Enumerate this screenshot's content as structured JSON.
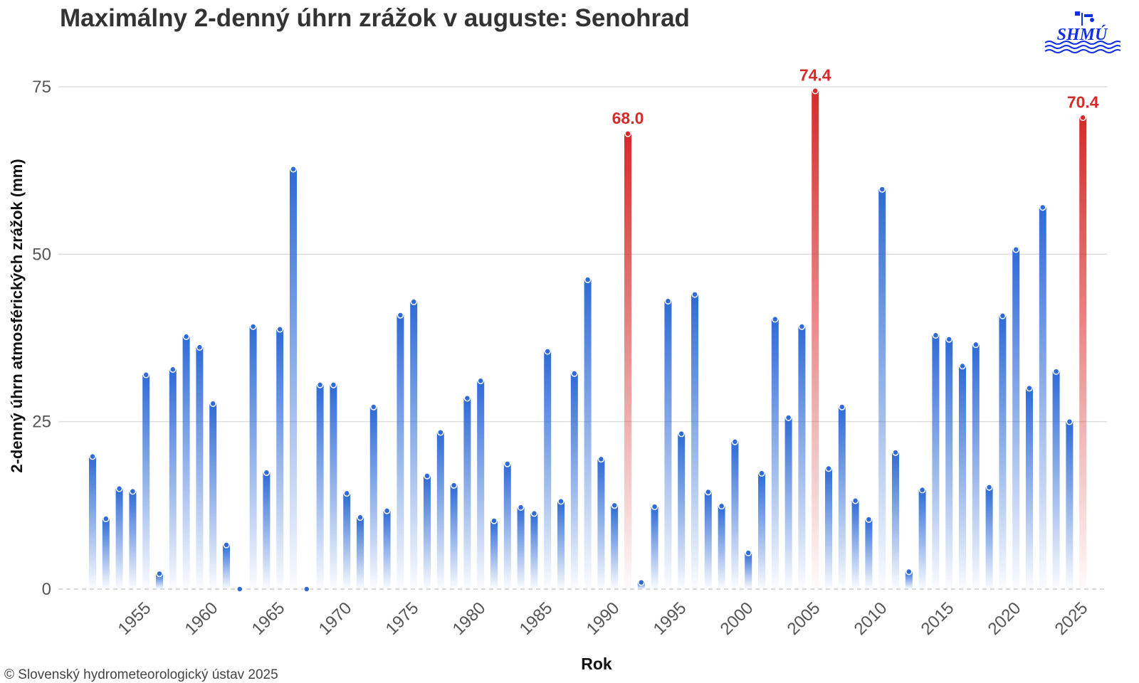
{
  "header": {
    "title": "Maximálny 2-denný úhrn zrážok v auguste: Senohrad",
    "logo_text": "SHMÚ"
  },
  "footer": {
    "copyright": "© Slovenský hydrometeorologický ústav 2025"
  },
  "colors": {
    "bar_blue": "#2e6bd6",
    "bar_red": "#d62b2b",
    "highlight_label": "#d62b2b",
    "grid": "#dddddd",
    "logo_blue": "#1030e0"
  },
  "chart_data": {
    "type": "bar",
    "xlabel": "Rok",
    "ylabel": "2-denný úhrn atmosférických zrážok (mm)",
    "ylim": [
      0,
      75
    ],
    "yticks": [
      0,
      25,
      50,
      75
    ],
    "xticks": [
      1955,
      1960,
      1965,
      1970,
      1975,
      1980,
      1985,
      1990,
      1995,
      2000,
      2005,
      2010,
      2015,
      2020,
      2025
    ],
    "grid": true,
    "x": [
      1951,
      1952,
      1953,
      1954,
      1955,
      1956,
      1957,
      1958,
      1959,
      1960,
      1961,
      1962,
      1963,
      1964,
      1965,
      1966,
      1967,
      1968,
      1969,
      1970,
      1971,
      1972,
      1973,
      1974,
      1975,
      1976,
      1977,
      1978,
      1979,
      1980,
      1981,
      1982,
      1983,
      1984,
      1985,
      1986,
      1987,
      1988,
      1989,
      1990,
      1991,
      1992,
      1993,
      1994,
      1995,
      1996,
      1997,
      1998,
      1999,
      2000,
      2001,
      2002,
      2003,
      2004,
      2005,
      2006,
      2007,
      2008,
      2009,
      2010,
      2011,
      2012,
      2013,
      2014,
      2015,
      2016,
      2017,
      2018,
      2019,
      2020,
      2021,
      2022,
      2023,
      2024,
      2025
    ],
    "values": [
      19.8,
      10.5,
      15.0,
      14.6,
      32.0,
      2.3,
      32.8,
      37.7,
      36.1,
      27.7,
      6.6,
      0.0,
      39.2,
      17.4,
      38.8,
      62.7,
      0.0,
      30.5,
      30.5,
      14.3,
      10.7,
      27.2,
      11.7,
      40.9,
      42.9,
      16.9,
      23.4,
      15.5,
      28.5,
      31.1,
      10.2,
      18.7,
      12.2,
      11.3,
      35.5,
      13.1,
      32.2,
      46.2,
      19.4,
      12.5,
      68.0,
      1.0,
      12.3,
      43.0,
      23.2,
      44.0,
      14.5,
      12.4,
      22.0,
      5.4,
      17.3,
      40.3,
      25.6,
      39.2,
      74.4,
      18.0,
      27.2,
      13.2,
      10.4,
      59.7,
      20.4,
      2.6,
      14.8,
      37.9,
      37.3,
      33.3,
      36.5,
      15.2,
      40.8,
      50.7,
      30.0,
      57.0,
      32.5,
      25.0,
      70.4
    ],
    "highlighted": [
      {
        "year": 1991,
        "value": 68.0,
        "label": "68.0"
      },
      {
        "year": 2005,
        "value": 74.4,
        "label": "74.4"
      },
      {
        "year": 2025,
        "value": 70.4,
        "label": "70.4"
      }
    ]
  }
}
